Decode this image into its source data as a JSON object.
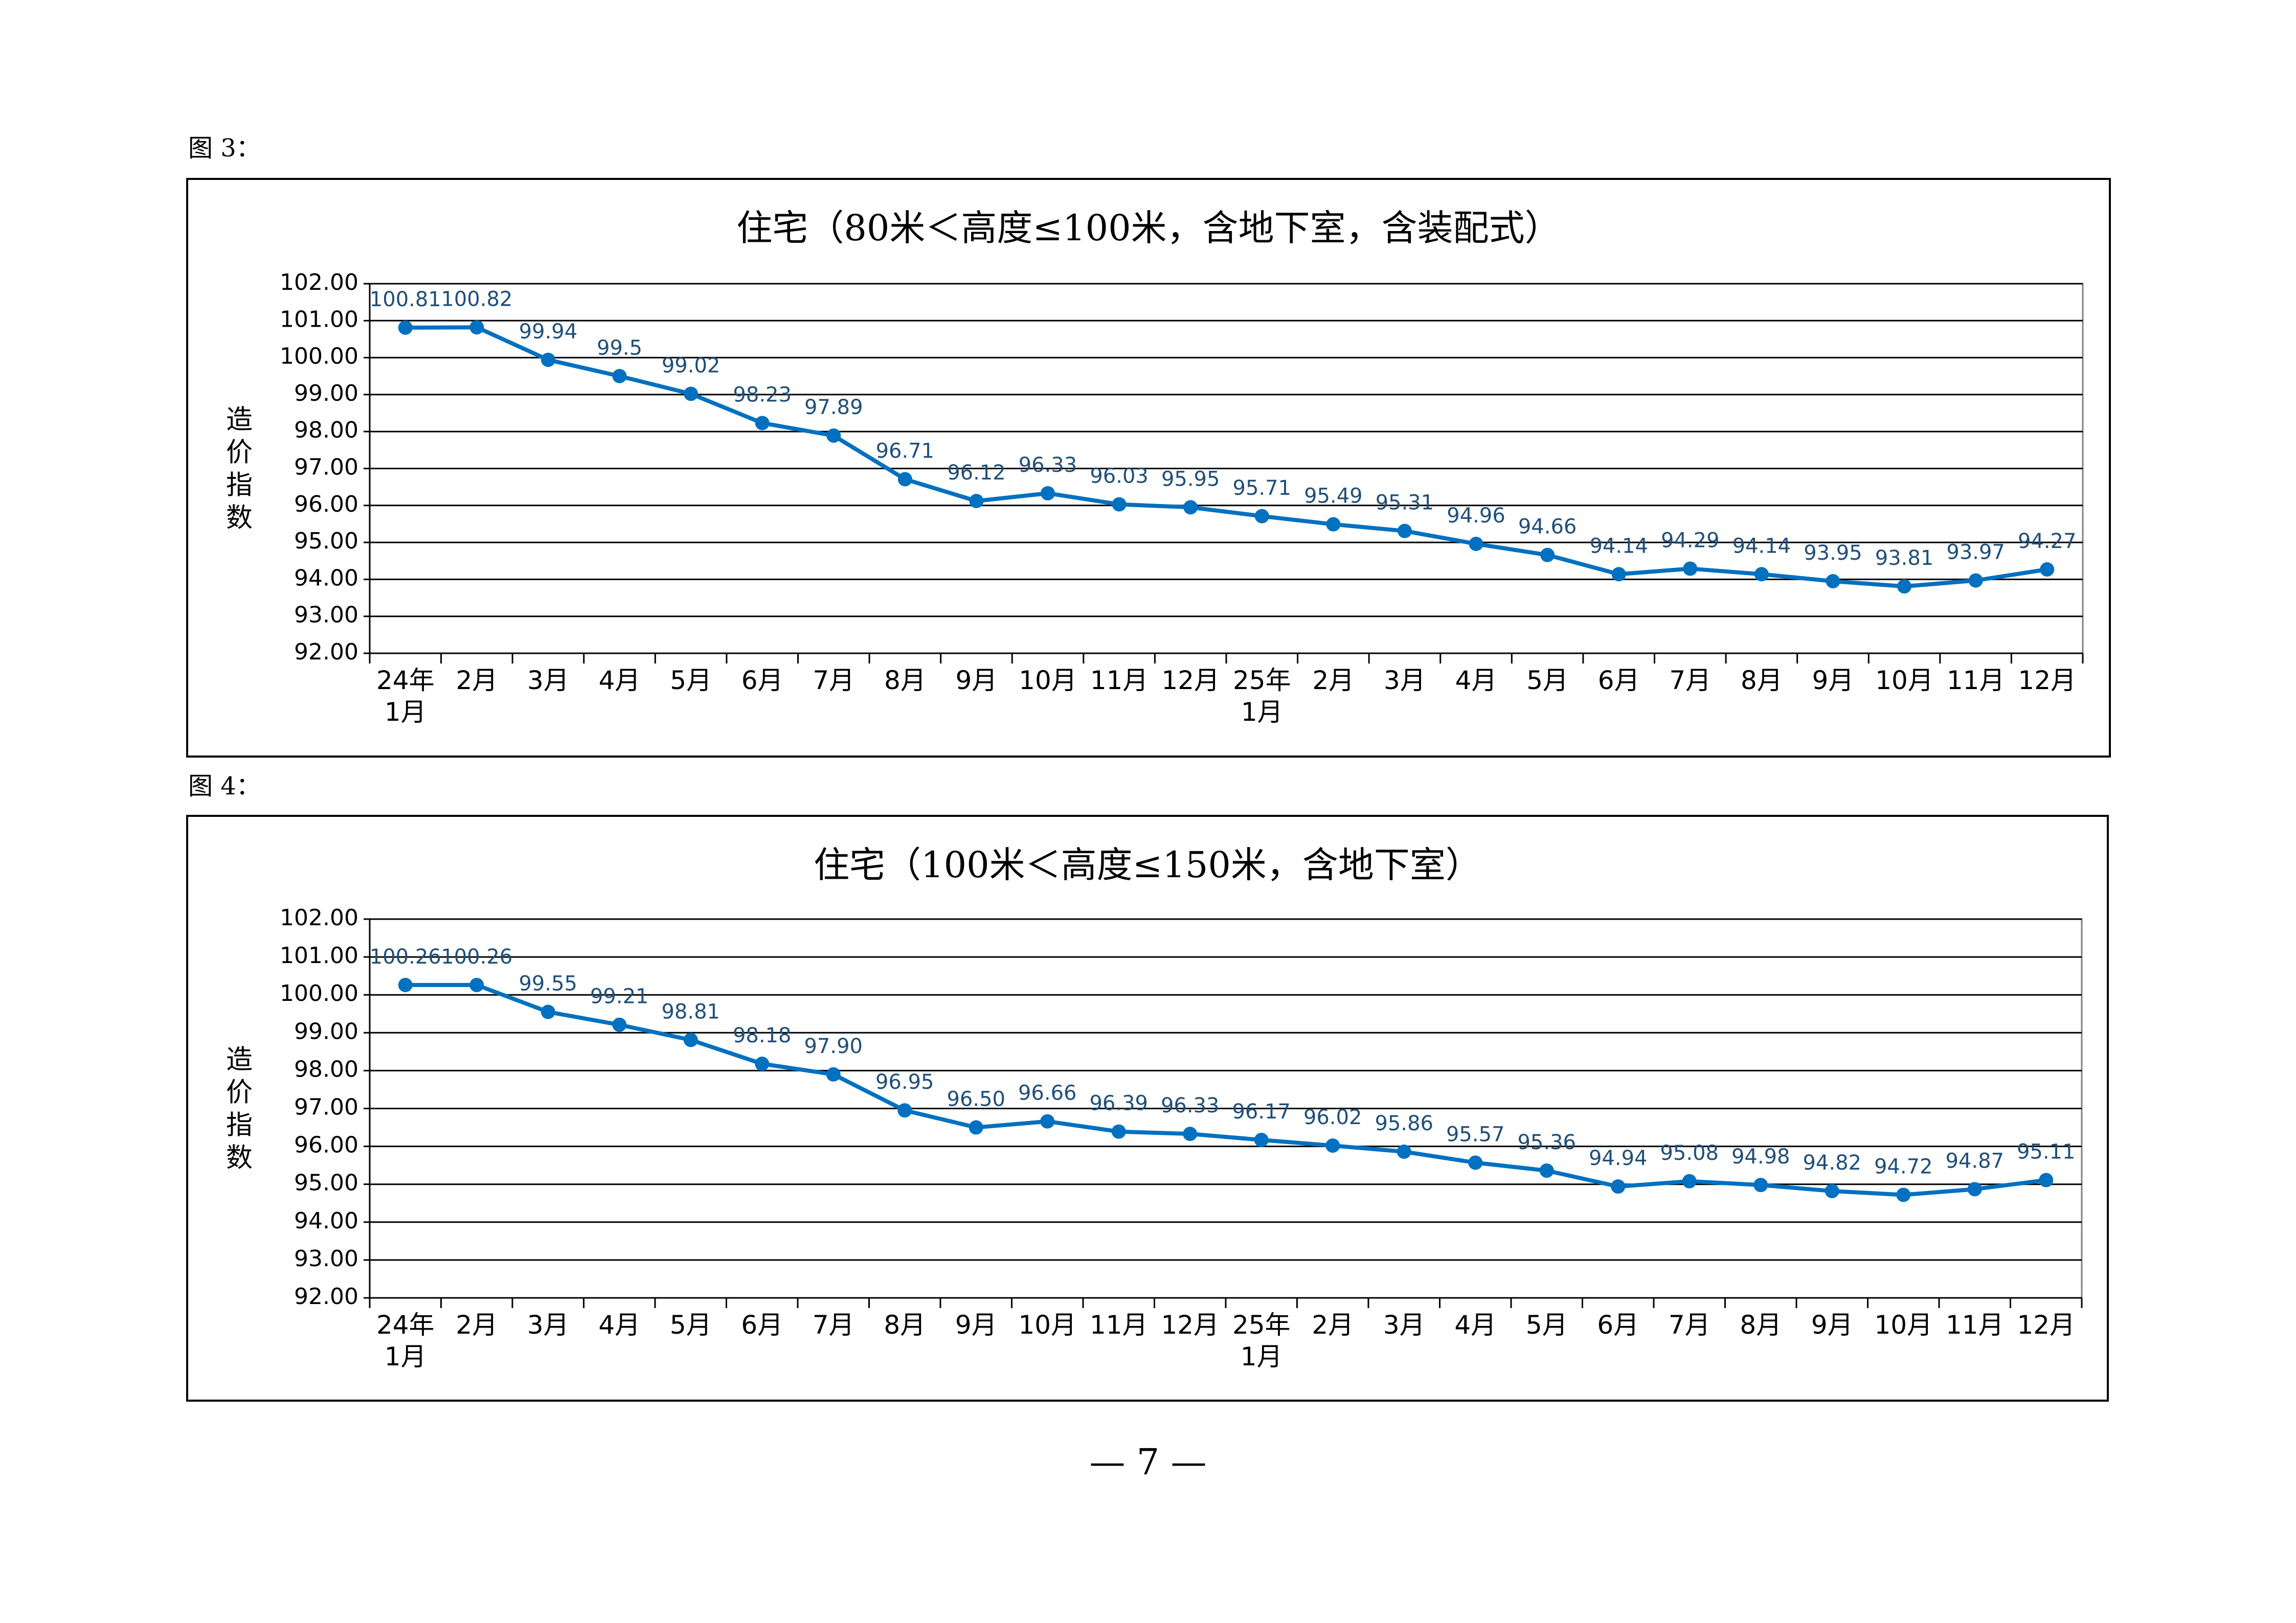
{
  "figures": [
    {
      "label": "图 3："
    },
    {
      "label": "图 4："
    }
  ],
  "page_number": "— 7 —",
  "colors": {
    "line": "#0070c0",
    "marker": "#0070c0",
    "data_label": "#1f4e79",
    "grid": "#000000",
    "plot_border": "#808080"
  },
  "chart_data": [
    {
      "type": "line",
      "title": "住宅（80米＜高度≤100米，含地下室，含装配式）",
      "ylabel": "造价指数",
      "xlabel": "",
      "ylim": [
        92.0,
        102.0
      ],
      "y_ticks": [
        "92.00",
        "93.00",
        "94.00",
        "95.00",
        "96.00",
        "97.00",
        "98.00",
        "99.00",
        "100.00",
        "101.00",
        "102.00"
      ],
      "grid": "horizontal",
      "categories": [
        [
          "24年",
          "1月"
        ],
        [
          "2月"
        ],
        [
          "3月"
        ],
        [
          "4月"
        ],
        [
          "5月"
        ],
        [
          "6月"
        ],
        [
          "7月"
        ],
        [
          "8月"
        ],
        [
          "9月"
        ],
        [
          "10月"
        ],
        [
          "11月"
        ],
        [
          "12月"
        ],
        [
          "25年",
          "1月"
        ],
        [
          "2月"
        ],
        [
          "3月"
        ],
        [
          "4月"
        ],
        [
          "5月"
        ],
        [
          "6月"
        ],
        [
          "7月"
        ],
        [
          "8月"
        ],
        [
          "9月"
        ],
        [
          "10月"
        ],
        [
          "11月"
        ],
        [
          "12月"
        ]
      ],
      "values": [
        100.81,
        100.82,
        99.94,
        99.5,
        99.02,
        98.23,
        97.89,
        96.71,
        96.12,
        96.33,
        96.03,
        95.95,
        95.71,
        95.49,
        95.31,
        94.96,
        94.66,
        94.14,
        94.29,
        94.14,
        93.95,
        93.81,
        93.97,
        94.27
      ],
      "data_labels": [
        "100.81",
        "100.82",
        "99.94",
        "99.5",
        "99.02",
        "98.23",
        "97.89",
        "96.71",
        "96.12",
        "96.33",
        "96.03",
        "95.95",
        "95.71",
        "95.49",
        "95.31",
        "94.96",
        "94.66",
        "94.14",
        "94.29",
        "94.14",
        "93.95",
        "93.81",
        "93.97",
        "94.27"
      ]
    },
    {
      "type": "line",
      "title": "住宅（100米＜高度≤150米，含地下室）",
      "ylabel": "造价指数",
      "xlabel": "",
      "ylim": [
        92.0,
        102.0
      ],
      "y_ticks": [
        "92.00",
        "93.00",
        "94.00",
        "95.00",
        "96.00",
        "97.00",
        "98.00",
        "99.00",
        "100.00",
        "101.00",
        "102.00"
      ],
      "grid": "horizontal",
      "categories": [
        [
          "24年",
          "1月"
        ],
        [
          "2月"
        ],
        [
          "3月"
        ],
        [
          "4月"
        ],
        [
          "5月"
        ],
        [
          "6月"
        ],
        [
          "7月"
        ],
        [
          "8月"
        ],
        [
          "9月"
        ],
        [
          "10月"
        ],
        [
          "11月"
        ],
        [
          "12月"
        ],
        [
          "25年",
          "1月"
        ],
        [
          "2月"
        ],
        [
          "3月"
        ],
        [
          "4月"
        ],
        [
          "5月"
        ],
        [
          "6月"
        ],
        [
          "7月"
        ],
        [
          "8月"
        ],
        [
          "9月"
        ],
        [
          "10月"
        ],
        [
          "11月"
        ],
        [
          "12月"
        ]
      ],
      "values": [
        100.26,
        100.26,
        99.55,
        99.21,
        98.81,
        98.18,
        97.9,
        96.95,
        96.5,
        96.66,
        96.39,
        96.33,
        96.17,
        96.02,
        95.86,
        95.57,
        95.36,
        94.94,
        95.08,
        94.98,
        94.82,
        94.72,
        94.87,
        95.11
      ],
      "data_labels": [
        "100.26",
        "100.26",
        "99.55",
        "99.21",
        "98.81",
        "98.18",
        "97.90",
        "96.95",
        "96.50",
        "96.66",
        "96.39",
        "96.33",
        "96.17",
        "96.02",
        "95.86",
        "95.57",
        "95.36",
        "94.94",
        "95.08",
        "94.98",
        "94.82",
        "94.72",
        "94.87",
        "95.11"
      ]
    }
  ]
}
